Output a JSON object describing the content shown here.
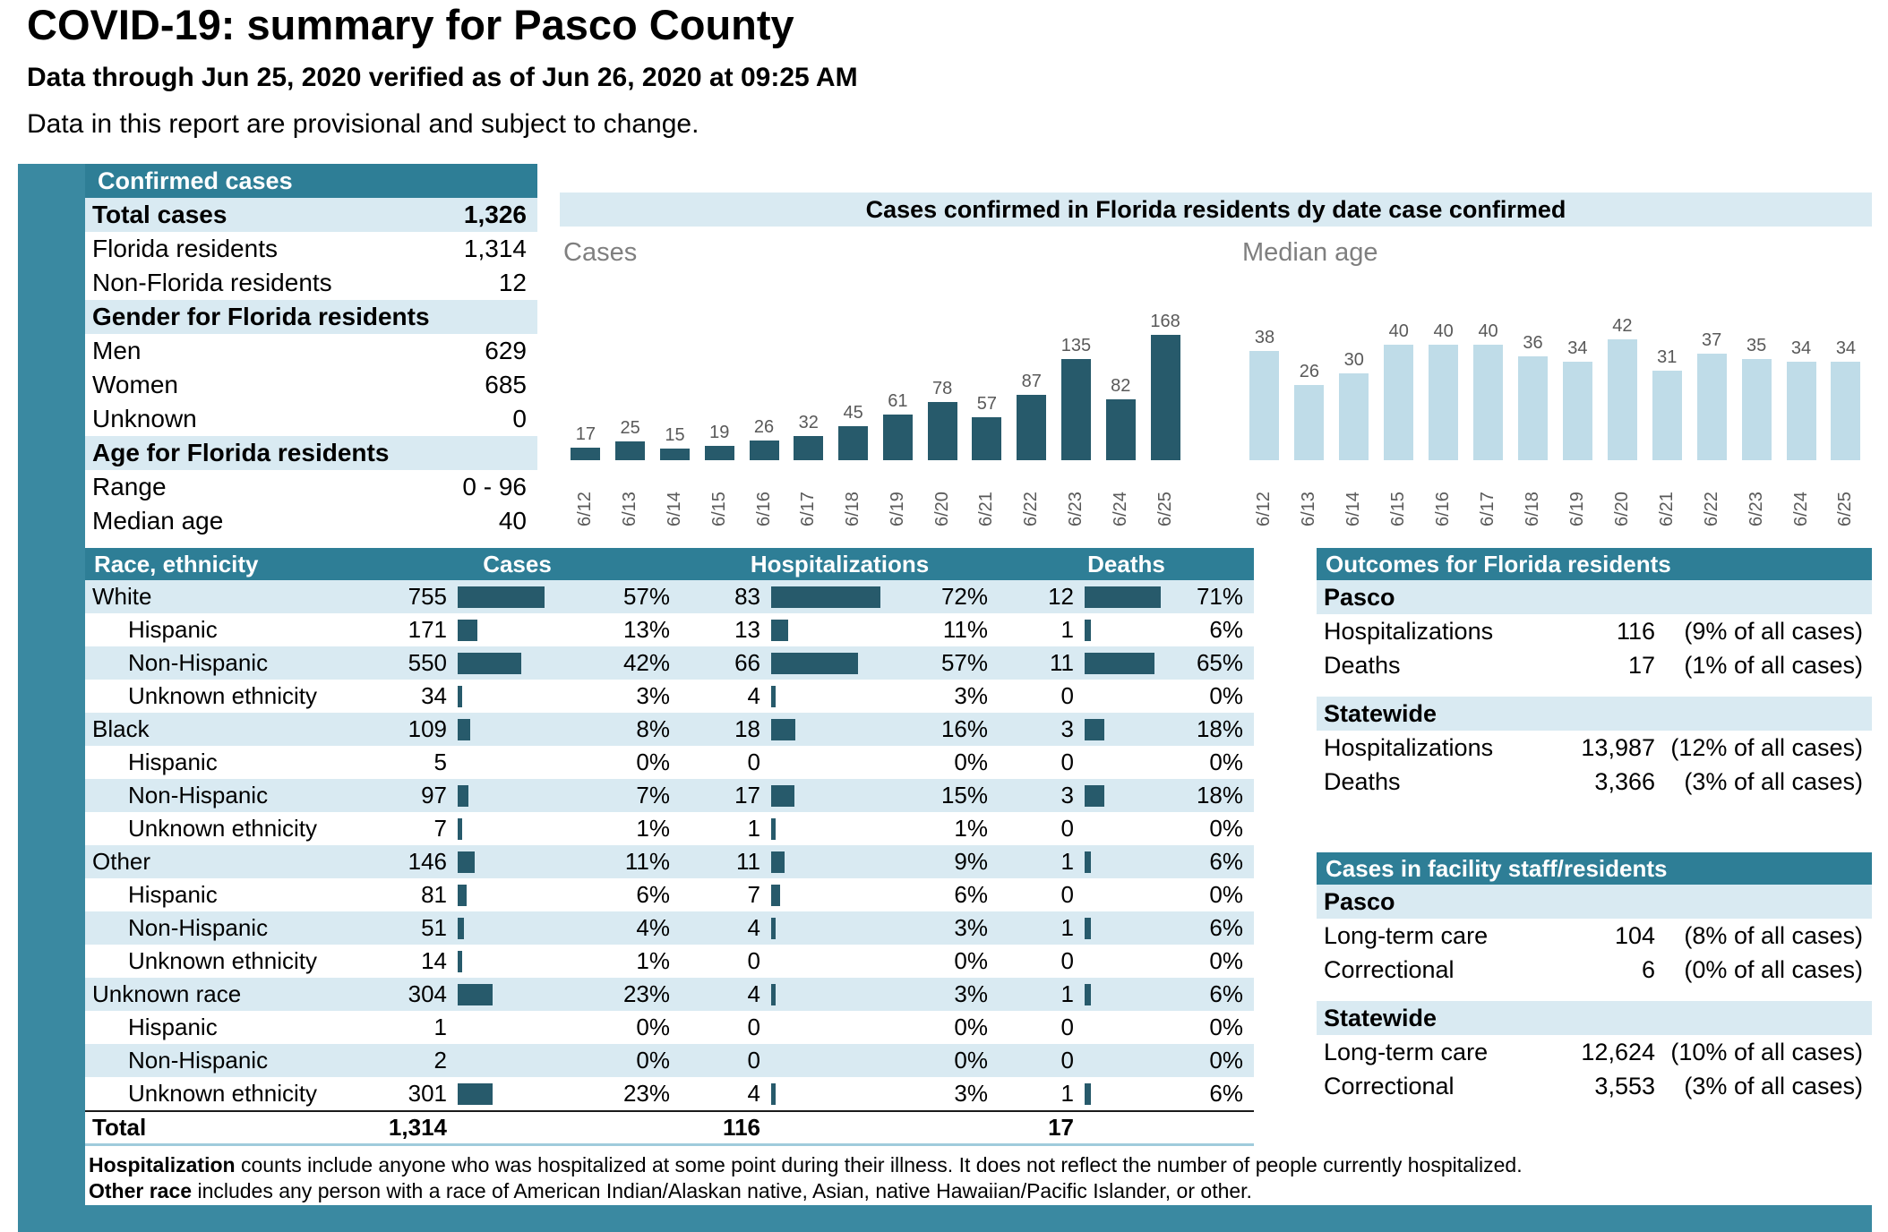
{
  "page": {
    "title": "COVID-19: summary for Pasco County",
    "subtitle": "Data through Jun 25, 2020 verified as of Jun 26, 2020 at 09:25 AM",
    "provisional_note": "Data in this report are provisional and subject to change."
  },
  "colors": {
    "header_band": "#2e7e96",
    "frame_strip": "#3a89a1",
    "row_stripe": "#d9eaf2",
    "dark_bar": "#275a6b",
    "light_bar": "#bfdce8"
  },
  "confirmed_cases": {
    "header": "Confirmed cases",
    "rows": [
      {
        "label": "Total cases",
        "value": "1,326",
        "emphasis": true
      },
      {
        "label": "Florida residents",
        "value": "1,314"
      },
      {
        "label": "Non-Florida residents",
        "value": "12"
      },
      {
        "label": "Gender for Florida residents",
        "value": "",
        "emphasis": true
      },
      {
        "label": "Men",
        "value": "629"
      },
      {
        "label": "Women",
        "value": "685"
      },
      {
        "label": "Unknown",
        "value": "0"
      },
      {
        "label": "Age for Florida residents",
        "value": "",
        "emphasis": true
      },
      {
        "label": "Range",
        "value": "0 - 96"
      },
      {
        "label": "Median age",
        "value": "40"
      }
    ]
  },
  "chart_data": [
    {
      "type": "bar",
      "title": "Cases confirmed in Florida residents dy date case confirmed",
      "series_label": "Cases",
      "categories": [
        "6/12",
        "6/13",
        "6/14",
        "6/15",
        "6/16",
        "6/17",
        "6/18",
        "6/19",
        "6/20",
        "6/21",
        "6/22",
        "6/23",
        "6/24",
        "6/25"
      ],
      "values": [
        17,
        25,
        15,
        19,
        26,
        32,
        45,
        61,
        78,
        57,
        87,
        135,
        82,
        168
      ],
      "ylim": [
        0,
        180
      ],
      "bar_color": "#275a6b",
      "grid": false,
      "legend": "none"
    },
    {
      "type": "bar",
      "series_label": "Median age",
      "categories": [
        "6/12",
        "6/13",
        "6/14",
        "6/15",
        "6/16",
        "6/17",
        "6/18",
        "6/19",
        "6/20",
        "6/21",
        "6/22",
        "6/23",
        "6/24",
        "6/25"
      ],
      "values": [
        38,
        26,
        30,
        40,
        40,
        40,
        36,
        34,
        42,
        31,
        37,
        35,
        34,
        34
      ],
      "ylim": [
        0,
        45
      ],
      "bar_color": "#bfdce8",
      "grid": false,
      "legend": "none"
    }
  ],
  "race_table": {
    "headers": {
      "race": "Race, ethnicity",
      "cases": "Cases",
      "hospitalizations": "Hospitalizations",
      "deaths": "Deaths"
    },
    "rows": [
      {
        "label": "White",
        "indent": false,
        "cases": "755",
        "cases_pct": 57,
        "hosp": "83",
        "hosp_pct": 72,
        "deaths": "12",
        "deaths_pct": 71
      },
      {
        "label": "Hispanic",
        "indent": true,
        "cases": "171",
        "cases_pct": 13,
        "hosp": "13",
        "hosp_pct": 11,
        "deaths": "1",
        "deaths_pct": 6
      },
      {
        "label": "Non-Hispanic",
        "indent": true,
        "cases": "550",
        "cases_pct": 42,
        "hosp": "66",
        "hosp_pct": 57,
        "deaths": "11",
        "deaths_pct": 65
      },
      {
        "label": "Unknown ethnicity",
        "indent": true,
        "cases": "34",
        "cases_pct": 3,
        "hosp": "4",
        "hosp_pct": 3,
        "deaths": "0",
        "deaths_pct": 0
      },
      {
        "label": "Black",
        "indent": false,
        "cases": "109",
        "cases_pct": 8,
        "hosp": "18",
        "hosp_pct": 16,
        "deaths": "3",
        "deaths_pct": 18
      },
      {
        "label": "Hispanic",
        "indent": true,
        "cases": "5",
        "cases_pct": 0,
        "hosp": "0",
        "hosp_pct": 0,
        "deaths": "0",
        "deaths_pct": 0
      },
      {
        "label": "Non-Hispanic",
        "indent": true,
        "cases": "97",
        "cases_pct": 7,
        "hosp": "17",
        "hosp_pct": 15,
        "deaths": "3",
        "deaths_pct": 18
      },
      {
        "label": "Unknown ethnicity",
        "indent": true,
        "cases": "7",
        "cases_pct": 1,
        "hosp": "1",
        "hosp_pct": 1,
        "deaths": "0",
        "deaths_pct": 0
      },
      {
        "label": "Other",
        "indent": false,
        "cases": "146",
        "cases_pct": 11,
        "hosp": "11",
        "hosp_pct": 9,
        "deaths": "1",
        "deaths_pct": 6
      },
      {
        "label": "Hispanic",
        "indent": true,
        "cases": "81",
        "cases_pct": 6,
        "hosp": "7",
        "hosp_pct": 6,
        "deaths": "0",
        "deaths_pct": 0
      },
      {
        "label": "Non-Hispanic",
        "indent": true,
        "cases": "51",
        "cases_pct": 4,
        "hosp": "4",
        "hosp_pct": 3,
        "deaths": "1",
        "deaths_pct": 6
      },
      {
        "label": "Unknown ethnicity",
        "indent": true,
        "cases": "14",
        "cases_pct": 1,
        "hosp": "0",
        "hosp_pct": 0,
        "deaths": "0",
        "deaths_pct": 0
      },
      {
        "label": "Unknown race",
        "indent": false,
        "cases": "304",
        "cases_pct": 23,
        "hosp": "4",
        "hosp_pct": 3,
        "deaths": "1",
        "deaths_pct": 6
      },
      {
        "label": "Hispanic",
        "indent": true,
        "cases": "1",
        "cases_pct": 0,
        "hosp": "0",
        "hosp_pct": 0,
        "deaths": "0",
        "deaths_pct": 0
      },
      {
        "label": "Non-Hispanic",
        "indent": true,
        "cases": "2",
        "cases_pct": 0,
        "hosp": "0",
        "hosp_pct": 0,
        "deaths": "0",
        "deaths_pct": 0
      },
      {
        "label": "Unknown ethnicity",
        "indent": true,
        "cases": "301",
        "cases_pct": 23,
        "hosp": "4",
        "hosp_pct": 3,
        "deaths": "1",
        "deaths_pct": 6
      }
    ],
    "total": {
      "label": "Total",
      "cases": "1,314",
      "hosp": "116",
      "deaths": "17"
    }
  },
  "outcomes": {
    "header": "Outcomes for Florida residents",
    "groups": [
      {
        "name": "Pasco",
        "rows": [
          {
            "label": "Hospitalizations",
            "value": "116",
            "note": "(9% of all cases)"
          },
          {
            "label": "Deaths",
            "value": "17",
            "note": "(1% of all cases)"
          }
        ]
      },
      {
        "name": "Statewide",
        "rows": [
          {
            "label": "Hospitalizations",
            "value": "13,987",
            "note": "(12% of all cases)"
          },
          {
            "label": "Deaths",
            "value": "3,366",
            "note": "(3% of all cases)"
          }
        ]
      }
    ]
  },
  "facility": {
    "header": "Cases in facility staff/residents",
    "groups": [
      {
        "name": "Pasco",
        "rows": [
          {
            "label": "Long-term care",
            "value": "104",
            "note": "(8% of all cases)"
          },
          {
            "label": "Correctional",
            "value": "6",
            "note": "(0% of all cases)"
          }
        ]
      },
      {
        "name": "Statewide",
        "rows": [
          {
            "label": "Long-term care",
            "value": "12,624",
            "note": "(10% of all cases)"
          },
          {
            "label": "Correctional",
            "value": "3,553",
            "note": "(3% of all cases)"
          }
        ]
      }
    ]
  },
  "footnotes": [
    {
      "lead": "Hospitalization",
      "text": " counts include anyone who was hospitalized at some point during their illness. It does not reflect the number of people currently hospitalized."
    },
    {
      "lead": "Other race",
      "text": " includes any person with a race of American Indian/Alaskan native, Asian, native Hawaiian/Pacific Islander, or other."
    }
  ]
}
